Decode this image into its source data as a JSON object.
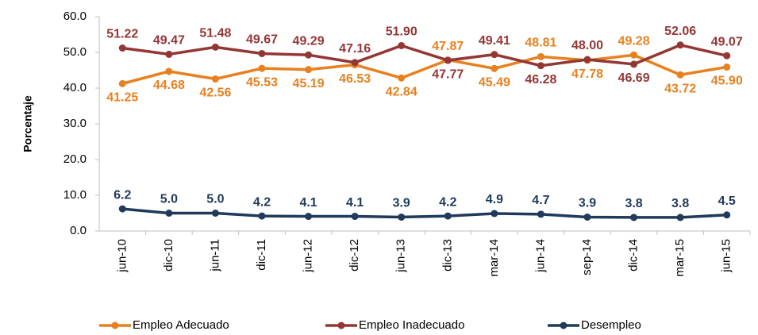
{
  "chart_data": {
    "type": "line",
    "y_label": "Porcentaje",
    "categories": [
      "jun-10",
      "dic-10",
      "jun-11",
      "dic-11",
      "jun-12",
      "dic-12",
      "jun-13",
      "dic-13",
      "mar-14",
      "jun-14",
      "sep-14",
      "dic-14",
      "mar-15",
      "jun-15"
    ],
    "series": [
      {
        "name": "Empleo Adecuado",
        "color": "#e8801f",
        "values": [
          41.25,
          44.68,
          42.56,
          45.53,
          45.19,
          46.53,
          42.84,
          47.87,
          45.49,
          48.81,
          47.78,
          49.28,
          43.72,
          45.9
        ],
        "value_labels": [
          "41.25",
          "44.68",
          "42.56",
          "45.53",
          "45.19",
          "46.53",
          "42.84",
          "47.87",
          "45.49",
          "48.81",
          "47.78",
          "49.28",
          "43.72",
          "45.90"
        ]
      },
      {
        "name": "Empleo Inadecuado",
        "color": "#943634",
        "values": [
          51.22,
          49.47,
          51.48,
          49.67,
          49.29,
          47.16,
          51.9,
          47.77,
          49.41,
          46.28,
          48.0,
          46.69,
          52.06,
          49.07
        ],
        "value_labels": [
          "51.22",
          "49.47",
          "51.48",
          "49.67",
          "49.29",
          "47.16",
          "51.90",
          "47.77",
          "49.41",
          "46.28",
          "48.00",
          "46.69",
          "52.06",
          "49.07"
        ]
      },
      {
        "name": "Desempleo",
        "color": "#1f3a5a",
        "values": [
          6.2,
          5.0,
          5.0,
          4.2,
          4.1,
          4.1,
          3.9,
          4.2,
          4.9,
          4.7,
          3.9,
          3.8,
          3.8,
          4.5
        ],
        "value_labels": [
          "6.2",
          "5.0",
          "5.0",
          "4.2",
          "4.1",
          "4.1",
          "3.9",
          "4.2",
          "4.9",
          "4.7",
          "3.9",
          "3.8",
          "3.8",
          "4.5"
        ]
      }
    ],
    "ylim": [
      0,
      60
    ],
    "yticks": [
      {
        "value": 0,
        "label": "0.0"
      },
      {
        "value": 10,
        "label": "10.0"
      },
      {
        "value": 20,
        "label": "20.0"
      },
      {
        "value": 30,
        "label": "30.0"
      },
      {
        "value": 40,
        "label": "40.0"
      },
      {
        "value": 50,
        "label": "50.0"
      },
      {
        "value": 60,
        "label": "60.0"
      }
    ],
    "legend": "bottom"
  }
}
